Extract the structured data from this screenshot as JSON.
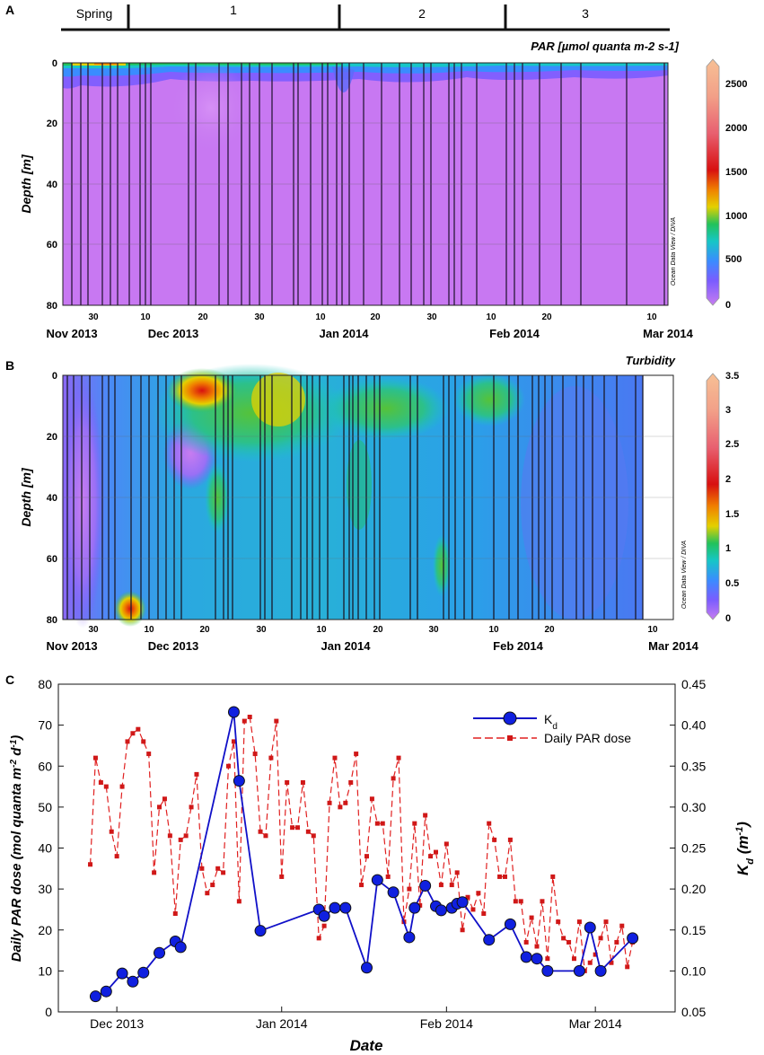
{
  "panels": {
    "a": {
      "letter": "A",
      "title": "PAR [µmol quanta m-2 s-1]",
      "ylabel": "Depth [m]",
      "watermark": "Ocean Data View / DIVA",
      "periods": [
        "Spring",
        "1",
        "2",
        "3"
      ],
      "depth_ticks": [
        "0",
        "20",
        "40",
        "60",
        "80"
      ],
      "day_ticks": [
        "30",
        "10",
        "20",
        "30",
        "10",
        "20",
        "30",
        "10",
        "20",
        "10"
      ],
      "month_labels": [
        "Nov 2013",
        "Dec 2013",
        "Jan 2014",
        "Feb 2014",
        "Mar 2014"
      ],
      "colorbar_ticks": [
        "2500",
        "2000",
        "1500",
        "1000",
        "500",
        "0"
      ]
    },
    "b": {
      "letter": "B",
      "title": "Turbidity",
      "ylabel": "Depth [m]",
      "watermark": "Ocean Data View / DIVA",
      "depth_ticks": [
        "0",
        "20",
        "40",
        "60",
        "80"
      ],
      "day_ticks": [
        "30",
        "10",
        "20",
        "30",
        "10",
        "20",
        "30",
        "10",
        "20",
        "10"
      ],
      "month_labels": [
        "Nov 2013",
        "Dec 2013",
        "Jan 2014",
        "Feb 2014",
        "Mar 2014"
      ],
      "colorbar_ticks": [
        "3.5",
        "3",
        "2.5",
        "2",
        "1.5",
        "1",
        "0.5",
        "0"
      ]
    },
    "c": {
      "letter": "C",
      "xlabel": "Date",
      "ylabel_left": "Daily PAR dose (mol quanta m",
      "ylabel_left_sup1": "-2",
      "ylabel_left_mid": " d",
      "ylabel_left_sup2": "-1",
      "ylabel_left_end": ")",
      "ylabel_right": "K",
      "ylabel_right_sub": "d",
      "ylabel_right_unit": " (m",
      "ylabel_right_sup": "-1",
      "ylabel_right_end": ")",
      "legend_kd": "K",
      "legend_kd_sub": "d",
      "legend_par": "Daily PAR dose",
      "left_ticks": [
        "0",
        "10",
        "20",
        "30",
        "40",
        "50",
        "60",
        "70",
        "80"
      ],
      "right_ticks": [
        "0.05",
        "0.10",
        "0.15",
        "0.20",
        "0.25",
        "0.30",
        "0.35",
        "0.40",
        "0.45"
      ],
      "x_ticks": [
        "Dec 2013",
        "Jan 2014",
        "Feb 2014",
        "Mar 2014"
      ]
    }
  },
  "colors": {
    "kd": "#1010c8",
    "par": "#e02020",
    "dark": "#111111"
  },
  "chart_data": [
    {
      "type": "heatmap",
      "title": "PAR [µmol quanta m-2 s-1]",
      "ylabel": "Depth [m]",
      "ylim": [
        80,
        0
      ],
      "colorbar_range": [
        0,
        2700
      ]
    },
    {
      "type": "heatmap",
      "title": "Turbidity",
      "ylabel": "Depth [m]",
      "ylim": [
        80,
        0
      ],
      "colorbar_range": [
        0,
        3.5
      ]
    },
    {
      "type": "line",
      "xlabel": "Date",
      "xlim": [
        "2013-11-20",
        "2014-03-16"
      ],
      "ylim_left": [
        0,
        80
      ],
      "ylim_right": [
        0.05,
        0.45
      ],
      "series": [
        {
          "name": "Kd",
          "axis": "right",
          "x": [
            "2013-11-27",
            "2013-11-29",
            "2013-12-02",
            "2013-12-04",
            "2013-12-06",
            "2013-12-09",
            "2013-12-12",
            "2013-12-13",
            "2013-12-23",
            "2013-12-24",
            "2013-12-28",
            "2014-01-08",
            "2014-01-09",
            "2014-01-11",
            "2014-01-13",
            "2014-01-17",
            "2014-01-19",
            "2014-01-22",
            "2014-01-25",
            "2014-01-26",
            "2014-01-28",
            "2014-01-30",
            "2014-01-31",
            "2014-02-02",
            "2014-02-03",
            "2014-02-04",
            "2014-02-09",
            "2014-02-13",
            "2014-02-16",
            "2014-02-18",
            "2014-02-20",
            "2014-02-26",
            "2014-02-28",
            "2014-03-02",
            "2014-03-08"
          ],
          "values": [
            0.069,
            0.075,
            0.097,
            0.087,
            0.098,
            0.122,
            0.136,
            0.129,
            0.416,
            0.332,
            0.149,
            0.175,
            0.167,
            0.177,
            0.177,
            0.104,
            0.211,
            0.196,
            0.141,
            0.177,
            0.204,
            0.179,
            0.174,
            0.177,
            0.182,
            0.184,
            0.138,
            0.157,
            0.117,
            0.115,
            0.1,
            0.1,
            0.153,
            0.1,
            0.14
          ]
        },
        {
          "name": "Daily PAR dose",
          "axis": "left",
          "x": [
            "2013-11-26",
            "2013-11-27",
            "2013-11-28",
            "2013-11-29",
            "2013-11-30",
            "2013-12-01",
            "2013-12-02",
            "2013-12-03",
            "2013-12-04",
            "2013-12-05",
            "2013-12-06",
            "2013-12-07",
            "2013-12-08",
            "2013-12-09",
            "2013-12-10",
            "2013-12-11",
            "2013-12-12",
            "2013-12-13",
            "2013-12-14",
            "2013-12-15",
            "2013-12-16",
            "2013-12-17",
            "2013-12-18",
            "2013-12-19",
            "2013-12-20",
            "2013-12-21",
            "2013-12-22",
            "2013-12-23",
            "2013-12-24",
            "2013-12-25",
            "2013-12-26",
            "2013-12-27",
            "2013-12-28",
            "2013-12-29",
            "2013-12-30",
            "2013-12-31",
            "2014-01-01",
            "2014-01-02",
            "2014-01-03",
            "2014-01-04",
            "2014-01-05",
            "2014-01-06",
            "2014-01-07",
            "2014-01-08",
            "2014-01-09",
            "2014-01-10",
            "2014-01-11",
            "2014-01-12",
            "2014-01-13",
            "2014-01-14",
            "2014-01-15",
            "2014-01-16",
            "2014-01-17",
            "2014-01-18",
            "2014-01-19",
            "2014-01-20",
            "2014-01-21",
            "2014-01-22",
            "2014-01-23",
            "2014-01-24",
            "2014-01-25",
            "2014-01-26",
            "2014-01-27",
            "2014-01-28",
            "2014-01-29",
            "2014-01-30",
            "2014-01-31",
            "2014-02-01",
            "2014-02-02",
            "2014-02-03",
            "2014-02-04",
            "2014-02-05",
            "2014-02-06",
            "2014-02-07",
            "2014-02-08",
            "2014-02-09",
            "2014-02-10",
            "2014-02-11",
            "2014-02-12",
            "2014-02-13",
            "2014-02-14",
            "2014-02-15",
            "2014-02-16",
            "2014-02-17",
            "2014-02-18",
            "2014-02-19",
            "2014-02-20",
            "2014-02-21",
            "2014-02-22",
            "2014-02-23",
            "2014-02-24",
            "2014-02-25",
            "2014-02-26",
            "2014-02-27",
            "2014-02-28",
            "2014-03-01",
            "2014-03-02",
            "2014-03-03",
            "2014-03-04",
            "2014-03-05",
            "2014-03-06",
            "2014-03-07",
            "2014-03-08"
          ],
          "values": [
            36,
            62,
            56,
            55,
            44,
            38,
            55,
            66,
            68,
            69,
            66,
            63,
            34,
            50,
            52,
            43,
            24,
            42,
            43,
            50,
            58,
            35,
            29,
            31,
            35,
            34,
            60,
            66,
            27,
            71,
            72,
            63,
            44,
            43,
            62,
            71,
            33,
            56,
            45,
            45,
            56,
            44,
            43,
            18,
            21,
            51,
            62,
            50,
            51,
            56,
            63,
            31,
            38,
            52,
            46,
            46,
            33,
            57,
            62,
            22,
            30,
            46,
            26,
            48,
            38,
            39,
            31,
            41,
            31,
            34,
            20,
            28,
            25,
            29,
            24,
            46,
            42,
            33,
            33,
            42,
            27,
            27,
            17,
            23,
            16,
            27,
            13,
            33,
            22,
            18,
            17,
            13,
            22,
            10,
            12,
            14,
            18,
            22,
            12,
            17,
            21,
            11,
            17
          ]
        }
      ]
    }
  ]
}
